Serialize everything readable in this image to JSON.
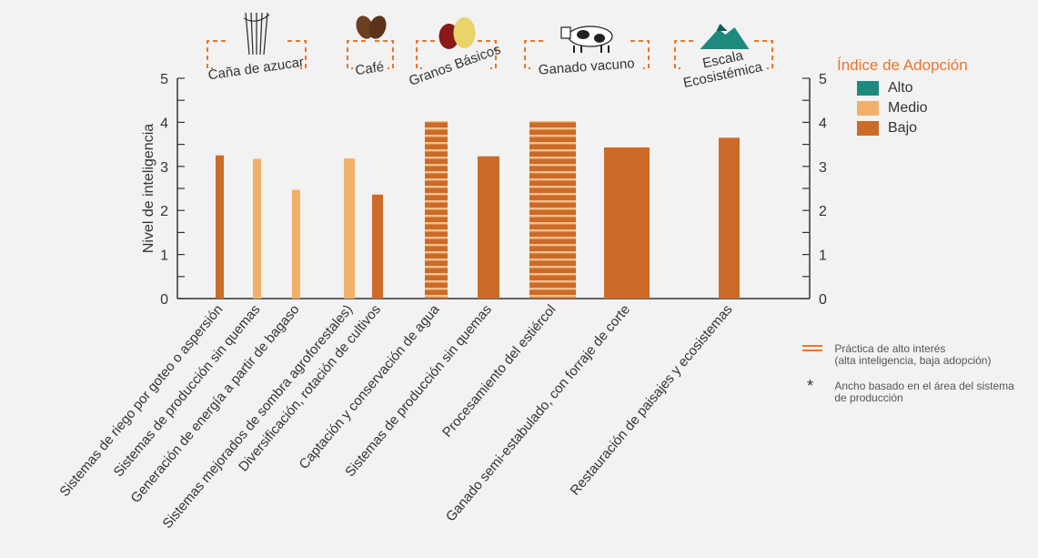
{
  "chart_data": {
    "type": "bar",
    "title": "",
    "ylabel": "Nivel de inteligencia",
    "ylim": [
      0,
      5
    ],
    "yticks": [
      "0",
      "1",
      "2",
      "3",
      "4",
      "5"
    ],
    "categories": [
      "Sistemas de riego por goteo o aspersión",
      "Sistemas de producción sin quemas",
      "Generación de energía a partir de bagaso",
      "Sistemas mejorados de sombra agroforestales)",
      "Diversificación, rotación de cultivos",
      "Captación y conservación de agua",
      "Sistemas de producción sin quemas",
      "Procesamiento del estiércol",
      "Ganado semi-estabulado, con forraje de corte",
      "Restauración de paisajes y ecosistemas"
    ],
    "values": [
      3.25,
      3.17,
      2.47,
      3.18,
      2.36,
      4.03,
      3.23,
      4.03,
      3.43,
      3.65
    ],
    "adoption": [
      "Bajo",
      "Medio",
      "Medio",
      "Medio",
      "Bajo",
      "Bajo",
      "Bajo",
      "Bajo",
      "Bajo",
      "Bajo"
    ],
    "high_interest": [
      false,
      false,
      false,
      false,
      false,
      true,
      false,
      true,
      false,
      false
    ],
    "groups": [
      {
        "label": "Caña de azucar",
        "icon": "sugarcane-icon"
      },
      {
        "label": "Café",
        "icon": "coffee-bean-icon"
      },
      {
        "label": "Granos Básicos",
        "icon": "beans-corn-icon"
      },
      {
        "label": "Ganado vacuno",
        "icon": "cow-icon"
      },
      {
        "label_lines": [
          "Escala",
          "Ecosistémica"
        ],
        "icon": "mountain-icon"
      }
    ],
    "legend_title": "Índice de Adopción",
    "legend": [
      {
        "name": "Alto",
        "color": "#1e8a7e"
      },
      {
        "name": "Medio",
        "color": "#f0b06a"
      },
      {
        "name": "Bajo",
        "color": "#cc6a28"
      }
    ],
    "notes": [
      {
        "mark": "=",
        "lines": [
          "Práctica de alto interés",
          "(alta inteligencia, baja adopción)"
        ]
      },
      {
        "mark": "*",
        "lines": [
          "Ancho basado en el área del sistema",
          "de producción"
        ]
      }
    ]
  }
}
